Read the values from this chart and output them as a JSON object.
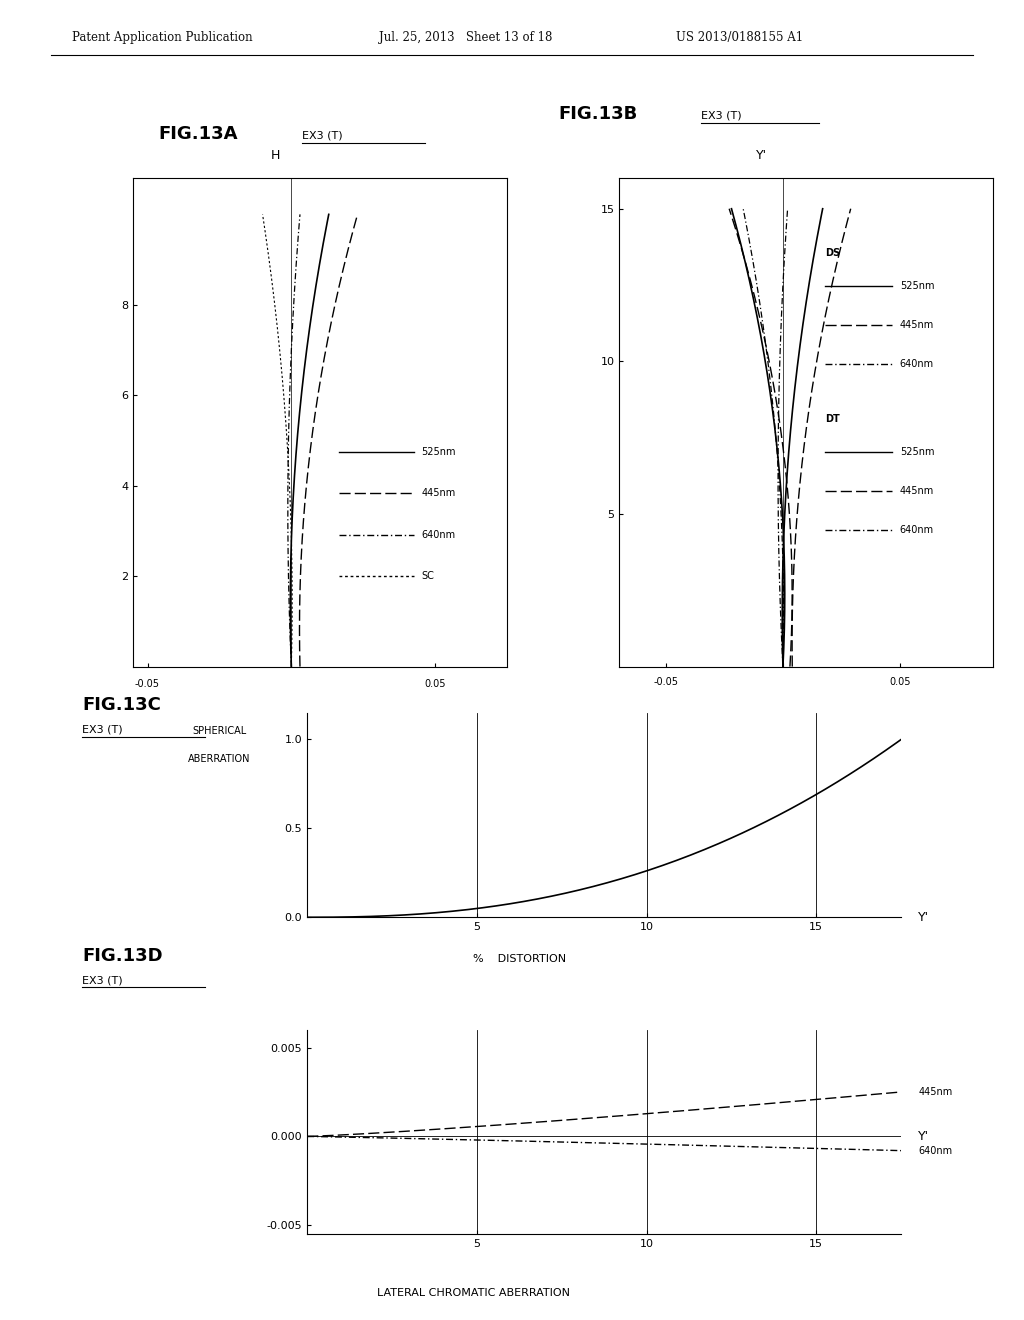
{
  "header_left": "Patent Application Publication",
  "header_mid": "Jul. 25, 2013   Sheet 13 of 18",
  "header_right": "US 2013/0188155 A1",
  "fig13a_title": "FIG.13A",
  "fig13a_sub": "EX3 (T)",
  "fig13b_title": "FIG.13B",
  "fig13b_sub": "EX3 (T)",
  "fig13c_title": "FIG.13C",
  "fig13c_sub": "EX3 (T)",
  "fig13d_title": "FIG.13D",
  "fig13d_sub": "EX3 (T)",
  "bg": "#ffffff",
  "fg": "#000000"
}
